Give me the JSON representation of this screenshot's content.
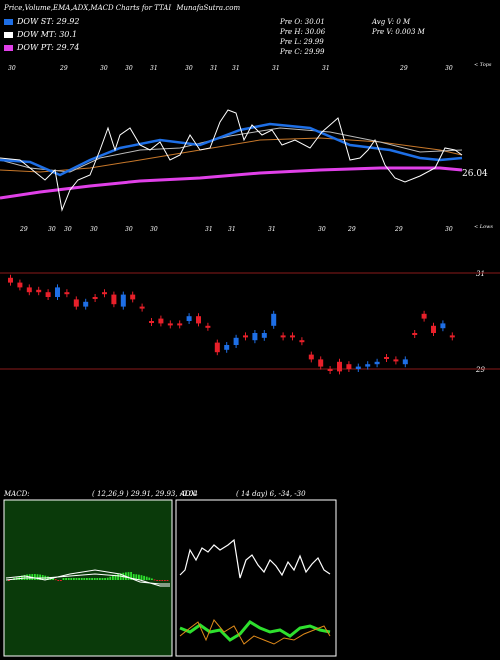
{
  "header": {
    "title": "Price,Volume,EMA,ADX,MACD Charts for TTAI",
    "site": "MunafaSutra.com"
  },
  "legend": [
    {
      "label": "DOW ST: 29.92",
      "color": "#1e6fe6"
    },
    {
      "label": "DOW MT: 30.1",
      "color": "#ffffff"
    },
    {
      "label": "DOW PT: 29.74",
      "color": "#e040e8"
    }
  ],
  "quote": {
    "open": "Pre   O: 30.01",
    "high": "Pre   H: 30.06",
    "low": "Pre   L: 29.99",
    "close": "Pre   C: 29.99",
    "avg_volume": "Avg V: 0   M",
    "prev_volume": "Pre   V: 0.003 M"
  },
  "colors": {
    "up": "#1e6fe6",
    "down": "#e8202a",
    "ema_short": "#1e6fe6",
    "ema_mid": "#ffffff",
    "ema_long": "#e040e8",
    "ema_extra": "#c8782a",
    "macd_bg": "#0a3a0a",
    "adx_plus": "#2ee02e",
    "adx_minus": "#e08a1a"
  },
  "top_panel": {
    "corner_label": "< Tops",
    "last_price_label": "26.04",
    "date_labels": [
      "30",
      "29",
      "30",
      "30",
      "31",
      "30",
      "31",
      "31",
      "31",
      "31",
      "29",
      "30"
    ]
  },
  "candle_panel": {
    "corner_label": "< Lows",
    "date_labels": [
      "29",
      "30",
      "30",
      "30",
      "30",
      "30",
      "31",
      "31",
      "31",
      "30",
      "29",
      "29",
      "30"
    ],
    "level_labels": [
      "31",
      "29"
    ]
  },
  "macd_panel": {
    "title": "MACD:",
    "values": "( 12,26,9 ) 29.91, 29.93, -0.04"
  },
  "adx_panel": {
    "title": "ADX",
    "values": "( 14   day) 6,  -34,  -30"
  },
  "chart_data": {
    "type": "line",
    "series": [
      {
        "name": "DOW ST",
        "values": [
          29.92
        ]
      },
      {
        "name": "DOW MT",
        "values": [
          30.1
        ]
      },
      {
        "name": "DOW PT",
        "values": [
          29.74
        ]
      }
    ],
    "candles": [
      {
        "o": 30.9,
        "c": 30.8,
        "up": false
      },
      {
        "o": 30.8,
        "c": 30.7,
        "up": false
      },
      {
        "o": 30.7,
        "c": 30.6,
        "up": false
      },
      {
        "o": 30.65,
        "c": 30.6,
        "up": false
      },
      {
        "o": 30.6,
        "c": 30.5,
        "up": false
      },
      {
        "o": 30.5,
        "c": 30.7,
        "up": true
      },
      {
        "o": 30.6,
        "c": 30.6,
        "up": false
      },
      {
        "o": 30.45,
        "c": 30.3,
        "up": false
      },
      {
        "o": 30.3,
        "c": 30.4,
        "up": true
      },
      {
        "o": 30.5,
        "c": 30.5,
        "up": false
      },
      {
        "o": 30.6,
        "c": 30.6,
        "up": false
      },
      {
        "o": 30.55,
        "c": 30.35,
        "up": false
      },
      {
        "o": 30.3,
        "c": 30.55,
        "up": true
      },
      {
        "o": 30.55,
        "c": 30.45,
        "up": false
      },
      {
        "o": 30.3,
        "c": 30.3,
        "up": false
      },
      {
        "o": 30.0,
        "c": 30.0,
        "up": false
      },
      {
        "o": 30.05,
        "c": 29.95,
        "up": false
      },
      {
        "o": 29.95,
        "c": 29.95,
        "up": false
      },
      {
        "o": 29.95,
        "c": 29.95,
        "up": false
      },
      {
        "o": 30.0,
        "c": 30.1,
        "up": true
      },
      {
        "o": 30.1,
        "c": 29.95,
        "up": false
      },
      {
        "o": 29.9,
        "c": 29.9,
        "up": false
      },
      {
        "o": 29.55,
        "c": 29.35,
        "up": false
      },
      {
        "o": 29.4,
        "c": 29.5,
        "up": true
      },
      {
        "o": 29.5,
        "c": 29.65,
        "up": true
      },
      {
        "o": 29.7,
        "c": 29.7,
        "up": false
      },
      {
        "o": 29.6,
        "c": 29.75,
        "up": true
      },
      {
        "o": 29.65,
        "c": 29.75,
        "up": true
      },
      {
        "o": 29.9,
        "c": 30.15,
        "up": true
      },
      {
        "o": 29.7,
        "c": 29.7,
        "up": false
      },
      {
        "o": 29.7,
        "c": 29.7,
        "up": false
      },
      {
        "o": 29.6,
        "c": 29.6,
        "up": false
      },
      {
        "o": 29.3,
        "c": 29.2,
        "up": false
      },
      {
        "o": 29.2,
        "c": 29.05,
        "up": false
      },
      {
        "o": 29.0,
        "c": 29.0,
        "up": false
      },
      {
        "o": 29.15,
        "c": 28.95,
        "up": false
      },
      {
        "o": 29.1,
        "c": 29.0,
        "up": false
      },
      {
        "o": 29.0,
        "c": 29.05,
        "up": true
      },
      {
        "o": 29.05,
        "c": 29.1,
        "up": true
      },
      {
        "o": 29.1,
        "c": 29.15,
        "up": true
      },
      {
        "o": 29.25,
        "c": 29.25,
        "up": false
      },
      {
        "o": 29.2,
        "c": 29.2,
        "up": false
      },
      {
        "o": 29.1,
        "c": 29.2,
        "up": true
      },
      {
        "o": 29.75,
        "c": 29.75,
        "up": false
      },
      {
        "o": 30.15,
        "c": 30.05,
        "up": false
      },
      {
        "o": 29.9,
        "c": 29.75,
        "up": false
      },
      {
        "o": 29.85,
        "c": 29.95,
        "up": true
      },
      {
        "o": 29.7,
        "c": 29.7,
        "up": false
      }
    ]
  }
}
